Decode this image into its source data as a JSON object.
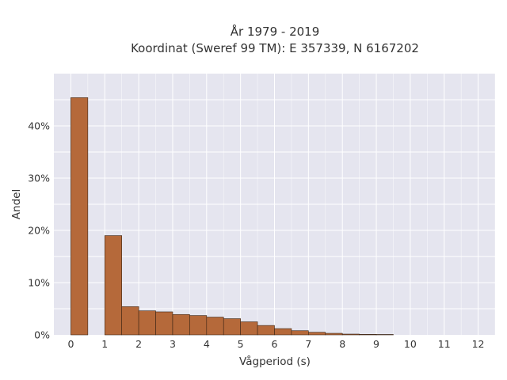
{
  "chart_data": {
    "type": "bar",
    "title_line1": "År 1979 - 2019",
    "title_line2": "Koordinat (Sweref 99 TM): E 357339, N 6167202",
    "xlabel": "Vågperiod (s)",
    "ylabel": "Andel",
    "xlim": [
      -0.5,
      12.5
    ],
    "ylim": [
      0,
      0.5
    ],
    "grid": true,
    "bar_color": "#b5693a",
    "bar_edge_color": "#3a2414",
    "x_ticks": [
      0,
      1,
      2,
      3,
      4,
      5,
      6,
      7,
      8,
      9,
      10,
      11,
      12
    ],
    "x_tick_labels": [
      "0",
      "1",
      "2",
      "3",
      "4",
      "5",
      "6",
      "7",
      "8",
      "9",
      "10",
      "11",
      "12"
    ],
    "y_ticks": [
      0,
      0.1,
      0.2,
      0.3,
      0.4
    ],
    "y_tick_labels": [
      "0%",
      "10%",
      "20%",
      "30%",
      "40%"
    ],
    "bin_width": 0.5,
    "bins": [
      {
        "x": 0.25,
        "value": 0.454
      },
      {
        "x": 1.25,
        "value": 0.19
      },
      {
        "x": 1.75,
        "value": 0.054
      },
      {
        "x": 2.25,
        "value": 0.046
      },
      {
        "x": 2.75,
        "value": 0.044
      },
      {
        "x": 3.25,
        "value": 0.039
      },
      {
        "x": 3.75,
        "value": 0.037
      },
      {
        "x": 4.25,
        "value": 0.034
      },
      {
        "x": 4.75,
        "value": 0.031
      },
      {
        "x": 5.25,
        "value": 0.025
      },
      {
        "x": 5.75,
        "value": 0.018
      },
      {
        "x": 6.25,
        "value": 0.012
      },
      {
        "x": 6.75,
        "value": 0.008
      },
      {
        "x": 7.25,
        "value": 0.005
      },
      {
        "x": 7.75,
        "value": 0.003
      },
      {
        "x": 8.25,
        "value": 0.0015
      },
      {
        "x": 8.75,
        "value": 0.001
      },
      {
        "x": 9.25,
        "value": 0.0008
      }
    ]
  }
}
